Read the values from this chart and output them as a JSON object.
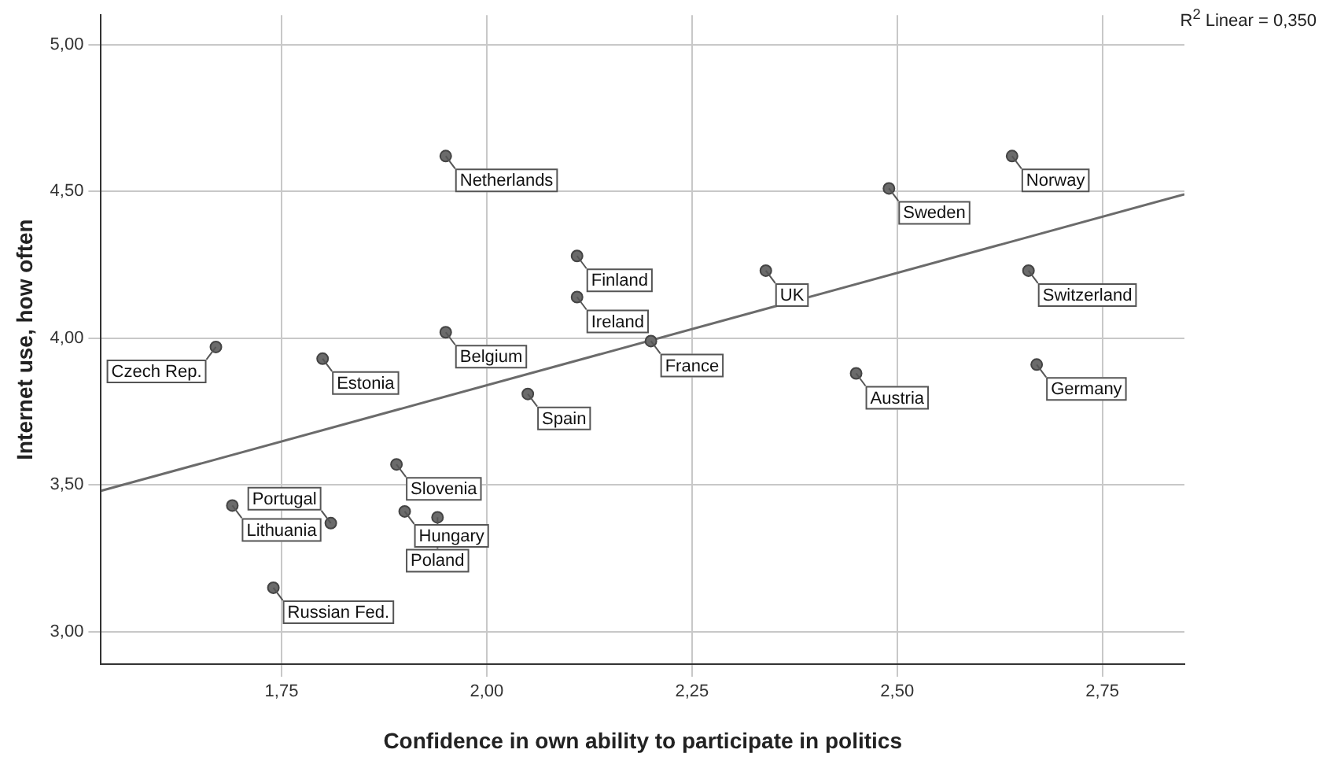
{
  "chart_data": {
    "type": "scatter",
    "xlabel": "Confidence in own ability to participate in politics",
    "ylabel": "Internet use, how often",
    "xlim": [
      1.53,
      2.85
    ],
    "ylim": [
      2.89,
      5.1
    ],
    "xticks": [
      {
        "value": 1.75,
        "label": "1,75"
      },
      {
        "value": 2,
        "label": "2,00"
      },
      {
        "value": 2.25,
        "label": "2,25"
      },
      {
        "value": 2.5,
        "label": "2,50"
      },
      {
        "value": 2.75,
        "label": "2,75"
      }
    ],
    "yticks": [
      {
        "value": 3,
        "label": "3,00"
      },
      {
        "value": 3.5,
        "label": "3,50"
      },
      {
        "value": 4,
        "label": "4,00"
      },
      {
        "value": 4.5,
        "label": "4,50"
      },
      {
        "value": 5,
        "label": "5,00"
      }
    ],
    "grid": true,
    "legend": false,
    "marker": "circle",
    "series": [
      {
        "type": "scatter",
        "color": "#6b6b6b",
        "x": [
          1.95,
          2.64,
          2.49,
          2.34,
          2.66,
          2.11,
          2.11,
          2.2,
          1.67,
          1.8,
          1.95,
          2.45,
          2.67,
          2.05,
          1.89,
          1.9,
          1.69,
          1.81,
          1.94,
          1.74
        ],
        "values": [
          4.62,
          4.62,
          4.51,
          4.23,
          4.23,
          4.28,
          4.14,
          3.99,
          3.97,
          3.93,
          4.02,
          3.88,
          3.91,
          3.81,
          3.57,
          3.41,
          3.43,
          3.37,
          3.39,
          3.15
        ]
      },
      {
        "type": "line",
        "color": "#6b6b6b",
        "x": [
          1.53,
          2.85
        ],
        "values": [
          3.48,
          4.49
        ],
        "marker": "none"
      }
    ],
    "annotations": [
      "R$^{2}$ Linear = 0,350",
      {
        "text": "Netherlands",
        "x": 1.95,
        "y": 4.62
      },
      {
        "text": "Norway",
        "x": 2.64,
        "y": 4.62
      },
      {
        "text": "Sweden",
        "x": 2.49,
        "y": 4.51
      },
      {
        "text": "UK",
        "x": 2.34,
        "y": 4.23
      },
      {
        "text": "Switzerland",
        "x": 2.66,
        "y": 4.23
      },
      {
        "text": "Finland",
        "x": 2.11,
        "y": 4.28
      },
      {
        "text": "Ireland",
        "x": 2.11,
        "y": 4.14
      },
      {
        "text": "France",
        "x": 2.2,
        "y": 3.99
      },
      {
        "text": "Czech Rep.",
        "x": 1.67,
        "y": 3.97
      },
      {
        "text": "Estonia",
        "x": 1.8,
        "y": 3.93
      },
      {
        "text": "Belgium",
        "x": 1.95,
        "y": 4.02
      },
      {
        "text": "Austria",
        "x": 2.45,
        "y": 3.88
      },
      {
        "text": "Germany",
        "x": 2.67,
        "y": 3.91
      },
      {
        "text": "Spain",
        "x": 2.05,
        "y": 3.81
      },
      {
        "text": "Slovenia",
        "x": 1.89,
        "y": 3.57
      },
      {
        "text": "Hungary",
        "x": 1.9,
        "y": 3.41
      },
      {
        "text": "Lithuania",
        "x": 1.69,
        "y": 3.43
      },
      {
        "text": "Portugal",
        "x": 1.81,
        "y": 3.37
      },
      {
        "text": "Poland",
        "x": 1.94,
        "y": 3.39
      },
      {
        "text": "Russian Fed.",
        "x": 1.74,
        "y": 3.15
      }
    ]
  }
}
